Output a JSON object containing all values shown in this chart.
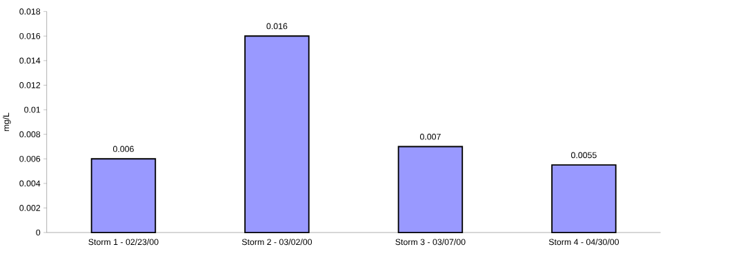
{
  "chart_data": {
    "type": "bar",
    "ylabel": "mg/L",
    "categories": [
      "Storm 1 - 02/23/00",
      "Storm 2 - 03/02/00",
      "Storm 3 - 03/07/00",
      "Storm 4 - 04/30/00"
    ],
    "values": [
      0.006,
      0.016,
      0.007,
      0.0055
    ],
    "color": "#9999ff",
    "ylim": [
      0,
      0.018
    ],
    "yticks": [
      0,
      0.002,
      0.004,
      0.006,
      0.008,
      0.01,
      0.012,
      0.014,
      0.016,
      0.018
    ],
    "data_labels": true,
    "grid": false
  }
}
